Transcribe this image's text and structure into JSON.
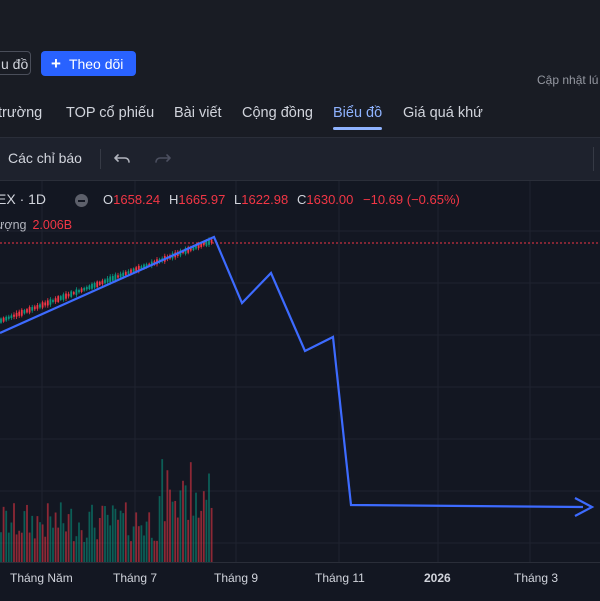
{
  "header": {
    "chart_button_label": "u đồ",
    "follow_button_label": "Theo dõi",
    "follow_plus": "+",
    "updated_text": "Cập nhật lú"
  },
  "nav": {
    "items": [
      "trường",
      "TOP cổ phiếu",
      "Bài viết",
      "Cộng đồng",
      "Biểu đồ",
      "Giá quá khứ"
    ],
    "active": "Biểu đồ"
  },
  "toolbar": {
    "indicators_label": "Các chỉ báo",
    "undo_icon": "undo-icon",
    "redo_icon": "redo-icon"
  },
  "legend": {
    "symbol": "EX · 1D",
    "open_label": "O",
    "open": "1658.24",
    "high_label": "H",
    "high": "1665.97",
    "low_label": "L",
    "low": "1622.98",
    "close_label": "C",
    "close": "1630.00",
    "change": "−10.69 (−0.65%)",
    "volume_label": "ượng",
    "volume": "2.006B"
  },
  "colors": {
    "background": "#131722",
    "panel": "#191c24",
    "accent": "#2962ff",
    "active_tab": "#8fb3ff",
    "down": "#f23645",
    "up": "#089981",
    "drawing": "#3d6bff"
  },
  "xaxis": {
    "labels": [
      "Tháng Năm",
      "Tháng 7",
      "Tháng 9",
      "Tháng 11",
      "2026",
      "Tháng 3"
    ],
    "bold": [
      "2026"
    ]
  },
  "chart_data": {
    "type": "line",
    "series": [
      {
        "values": []
      }
    ]
  }
}
